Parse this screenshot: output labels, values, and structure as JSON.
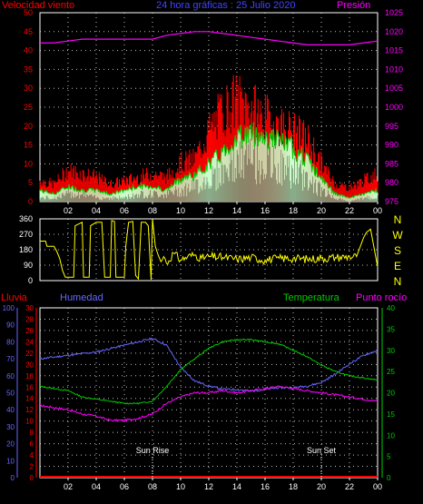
{
  "header": {
    "wind_label": "Velocidad viento",
    "center_title": "24 hora gráficas : 25 Julio 2020",
    "pressure_label": "Presión"
  },
  "colors": {
    "wind": "#ff0000",
    "gust": "#ff0000",
    "avg": "#00cc00",
    "wind_fill": "#ccffcc",
    "pressure": "#ff00ff",
    "direction": "#ffff00",
    "rain": "#ff0000",
    "humidity": "#6666ff",
    "temperature": "#00cc00",
    "dewpoint": "#ff00ff",
    "axis_left": "#ff0000",
    "axis_pressure": "#ff00ff",
    "axis_temp": "#00cc00",
    "axis_hum": "#6666ff",
    "grid": "#ffffff",
    "text": "#ffffff"
  },
  "x_tick_labels": [
    "02",
    "04",
    "06",
    "08",
    "10",
    "12",
    "14",
    "16",
    "18",
    "20",
    "22",
    "00"
  ],
  "chart_data": [
    {
      "type": "line",
      "title": "24 hora gráficas : 25 Julio 2020",
      "y_left_label": "Velocidad viento",
      "y_right_label": "Presión",
      "y_left_ticks": [
        "50",
        "45",
        "40",
        "35",
        "30",
        "25",
        "20",
        "15",
        "10",
        "5",
        "0"
      ],
      "y_right_ticks": [
        "1025",
        "1020",
        "1015",
        "1010",
        "1005",
        "1000",
        "995",
        "990",
        "985",
        "980",
        "975"
      ],
      "ylim_left": [
        0,
        50
      ],
      "ylim_right": [
        975,
        1025
      ],
      "x_hours": [
        0,
        1,
        2,
        3,
        4,
        5,
        6,
        7,
        8,
        9,
        10,
        11,
        12,
        13,
        14,
        15,
        16,
        17,
        18,
        19,
        20,
        21,
        22,
        23,
        24
      ],
      "series": [
        {
          "name": "Presión",
          "axis": "right",
          "values": [
            1017,
            1017,
            1017.5,
            1018,
            1018,
            1018,
            1018,
            1018,
            1018,
            1019,
            1019.5,
            1020,
            1020,
            1019.5,
            1019,
            1018.5,
            1018,
            1017.5,
            1017,
            1016.5,
            1016.5,
            1016.5,
            1016.5,
            1017,
            1017.5
          ]
        },
        {
          "name": "gust",
          "axis": "left",
          "values": [
            6,
            5,
            9,
            8,
            7,
            5,
            6,
            7,
            8,
            7,
            11,
            12,
            20,
            26,
            29,
            27,
            24,
            22,
            20,
            18,
            11,
            5,
            4,
            6,
            8
          ]
        },
        {
          "name": "avg",
          "axis": "left",
          "values": [
            3,
            2,
            4,
            3,
            3,
            2,
            3,
            4,
            4,
            3,
            6,
            7,
            10,
            13,
            17,
            18,
            17,
            16,
            14,
            11,
            6,
            2,
            1,
            2,
            3
          ]
        },
        {
          "name": "speed",
          "axis": "left",
          "values": [
            1,
            1,
            2,
            2,
            1,
            1,
            1,
            2,
            2,
            2,
            3,
            4,
            6,
            8,
            10,
            11,
            10,
            9,
            8,
            6,
            3,
            1,
            0,
            1,
            1
          ]
        }
      ]
    },
    {
      "type": "line",
      "y_ticks": [
        "360",
        "270",
        "180",
        "90",
        "0"
      ],
      "y_right_labels": [
        "N",
        "W",
        "S",
        "E",
        "N"
      ],
      "ylim": [
        0,
        360
      ],
      "series": [
        {
          "name": "direction",
          "points": [
            [
              0,
              230
            ],
            [
              0.4,
              230
            ],
            [
              0.5,
              200
            ],
            [
              1.0,
              200
            ],
            [
              1.2,
              170
            ],
            [
              1.4,
              130
            ],
            [
              1.6,
              60
            ],
            [
              1.8,
              20
            ],
            [
              2.2,
              20
            ],
            [
              2.4,
              20
            ],
            [
              2.5,
              320
            ],
            [
              3.0,
              340
            ],
            [
              3.1,
              20
            ],
            [
              3.5,
              20
            ],
            [
              3.6,
              320
            ],
            [
              4.0,
              340
            ],
            [
              4.4,
              340
            ],
            [
              4.6,
              20
            ],
            [
              5.0,
              20
            ],
            [
              5.1,
              350
            ],
            [
              5.3,
              345
            ],
            [
              5.4,
              20
            ],
            [
              6.0,
              20
            ],
            [
              6.1,
              200
            ],
            [
              6.3,
              340
            ],
            [
              6.6,
              345
            ],
            [
              6.8,
              30
            ],
            [
              7.0,
              10
            ],
            [
              7.2,
              340
            ],
            [
              7.5,
              340
            ],
            [
              7.7,
              320
            ],
            [
              7.9,
              5
            ],
            [
              8.0,
              360
            ],
            [
              8.2,
              200
            ],
            [
              8.4,
              150
            ],
            [
              8.6,
              110
            ],
            [
              8.8,
              140
            ],
            [
              9.0,
              100
            ],
            [
              9.5,
              160
            ],
            [
              10,
              120
            ],
            [
              10.5,
              140
            ],
            [
              11,
              150
            ],
            [
              11.5,
              130
            ],
            [
              12,
              140
            ],
            [
              13,
              135
            ],
            [
              14,
              125
            ],
            [
              15,
              135
            ],
            [
              16,
              120
            ],
            [
              17,
              130
            ],
            [
              18,
              130
            ],
            [
              19,
              125
            ],
            [
              20,
              130
            ],
            [
              21,
              135
            ],
            [
              22,
              140
            ],
            [
              22.5,
              140
            ],
            [
              23,
              250
            ],
            [
              23.2,
              280
            ],
            [
              23.5,
              300
            ],
            [
              24,
              80
            ]
          ]
        }
      ]
    },
    {
      "type": "line",
      "header_labels": {
        "rain": "Lluvia",
        "humidity": "Humedad",
        "temperature": "Temperatura",
        "dewpoint": "Punto rocío"
      },
      "y_hum_ticks": [
        "100",
        "90",
        "80",
        "70",
        "60",
        "50",
        "40",
        "30",
        "20",
        "10",
        "0"
      ],
      "y_rain_ticks": [
        "30",
        "28",
        "26",
        "24",
        "22",
        "20",
        "18",
        "16",
        "14",
        "12",
        "10",
        "8",
        "6",
        "4",
        "2",
        "0"
      ],
      "y_temp_ticks": [
        "40",
        "35",
        "30",
        "25",
        "20",
        "15",
        "10",
        "5",
        "0"
      ],
      "ylim_humidity": [
        0,
        100
      ],
      "ylim_temperature": [
        0,
        40
      ],
      "ylim_rain": [
        0,
        30
      ],
      "annotations": [
        {
          "hour": 8,
          "label": "Sun Rise"
        },
        {
          "hour": 20,
          "label": "Sun Set"
        }
      ],
      "x_hours": [
        0,
        1,
        2,
        3,
        4,
        5,
        6,
        7,
        8,
        9,
        10,
        11,
        12,
        13,
        14,
        15,
        16,
        17,
        18,
        19,
        20,
        21,
        22,
        23,
        24
      ],
      "series": [
        {
          "name": "Humedad",
          "axis": "humidity",
          "values": [
            70,
            71,
            72,
            73,
            74,
            76,
            78,
            80,
            82,
            78,
            65,
            57,
            54,
            52,
            52,
            51,
            52,
            53,
            53,
            54,
            56,
            61,
            67,
            72,
            75
          ]
        },
        {
          "name": "Temperatura",
          "axis": "temperature",
          "values": [
            21.5,
            21,
            20.5,
            19,
            18.5,
            18,
            17.5,
            17.5,
            18,
            21.5,
            25.5,
            28,
            30.5,
            32,
            32.5,
            32.5,
            32,
            31.5,
            30,
            28.5,
            26.5,
            25,
            24,
            23.5,
            23
          ]
        },
        {
          "name": "Punto rocío",
          "axis": "temperature",
          "values": [
            17,
            16.5,
            16,
            15,
            14.5,
            13.5,
            13.5,
            14,
            15,
            17.5,
            19,
            20,
            20,
            20.5,
            20,
            20.5,
            21,
            21.5,
            21,
            20.5,
            20,
            19.5,
            19,
            18.5,
            18
          ]
        },
        {
          "name": "Lluvia",
          "axis": "rain",
          "values": [
            0,
            0,
            0,
            0,
            0,
            0,
            0,
            0,
            0,
            0,
            0,
            0,
            0,
            0,
            0,
            0,
            0,
            0,
            0,
            0,
            0,
            0,
            0,
            0,
            0
          ]
        }
      ]
    }
  ]
}
